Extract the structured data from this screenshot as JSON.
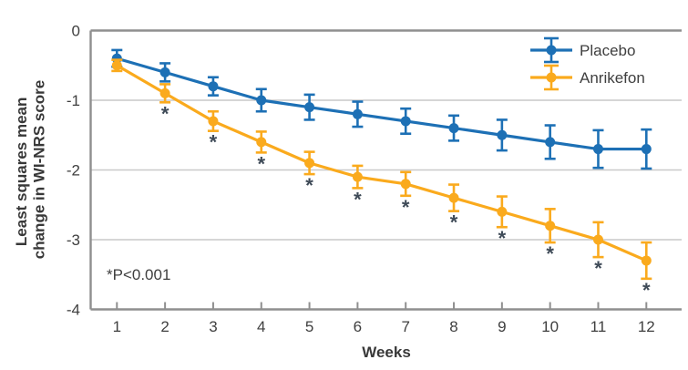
{
  "figure": {
    "background": "#ffffff"
  },
  "chart_data": {
    "type": "line",
    "x": [
      1,
      2,
      3,
      4,
      5,
      6,
      7,
      8,
      9,
      10,
      11,
      12
    ],
    "xlabel": "Weeks",
    "ylabel_lines": [
      "Least squares mean",
      "change in WI-NRS score"
    ],
    "ylim": [
      -4,
      0
    ],
    "yticks": [
      0,
      -1,
      -2,
      -3,
      -4
    ],
    "grid": "horizontal",
    "legend_position": "top-right",
    "annotation": "*P<0.001",
    "significance_marker": "*",
    "series": [
      {
        "name": "Placebo",
        "color": "#1d70b5",
        "values": [
          -0.4,
          -0.6,
          -0.8,
          -1.0,
          -1.1,
          -1.2,
          -1.3,
          -1.4,
          -1.5,
          -1.6,
          -1.7,
          -1.7
        ],
        "errors": [
          0.12,
          0.13,
          0.13,
          0.16,
          0.18,
          0.18,
          0.18,
          0.18,
          0.22,
          0.24,
          0.27,
          0.28
        ],
        "significant": [
          false,
          false,
          false,
          false,
          false,
          false,
          false,
          false,
          false,
          false,
          false,
          false
        ]
      },
      {
        "name": "Anrikefon",
        "color": "#faaa1d",
        "values": [
          -0.5,
          -0.9,
          -1.3,
          -1.6,
          -1.9,
          -2.1,
          -2.2,
          -2.4,
          -2.6,
          -2.8,
          -3.0,
          -3.3
        ],
        "errors": [
          0.08,
          0.13,
          0.14,
          0.15,
          0.16,
          0.16,
          0.17,
          0.19,
          0.22,
          0.24,
          0.25,
          0.26
        ],
        "significant": [
          false,
          true,
          true,
          true,
          true,
          true,
          true,
          true,
          true,
          true,
          true,
          true
        ]
      }
    ],
    "style": {
      "axis_color": "#8f8f8f",
      "grid_color": "#c9c9c9",
      "text_color": "#3f3f3f",
      "title_color": "#383838",
      "asterisk_color": "#3e4a57",
      "background": "#ffffff"
    }
  }
}
